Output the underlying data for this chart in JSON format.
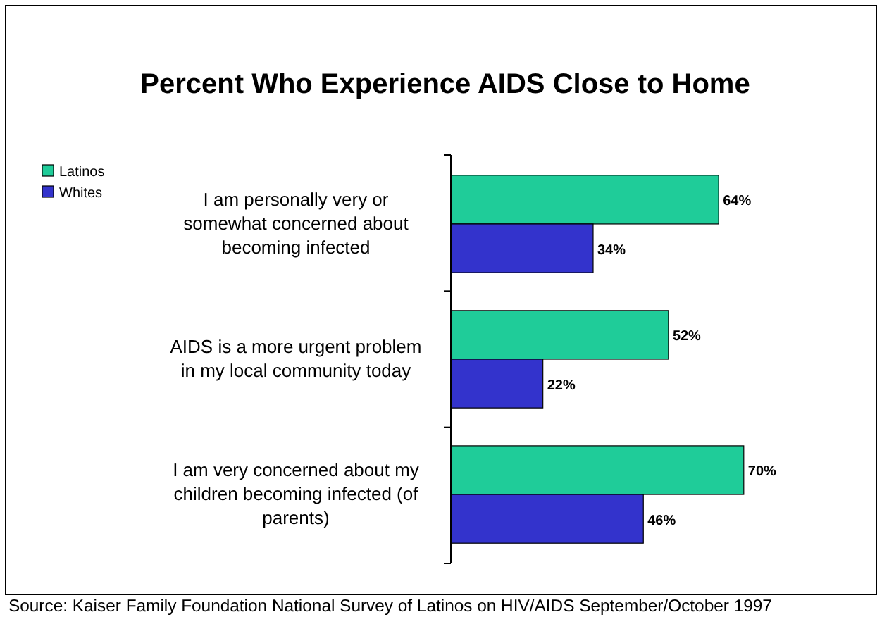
{
  "chart_data": {
    "type": "bar",
    "orientation": "horizontal",
    "title": "Percent Who Experience AIDS Close to Home",
    "categories": [
      "I am personally very or somewhat concerned about becoming infected",
      "AIDS is a more urgent problem in my local community today",
      "I am very concerned about my children becoming infected (of parents)"
    ],
    "series": [
      {
        "name": "Latinos",
        "color": "#1fcc99",
        "values": [
          64,
          52,
          70
        ],
        "value_labels": [
          "64%",
          "52%",
          "70%"
        ]
      },
      {
        "name": "Whites",
        "color": "#3333cc",
        "values": [
          34,
          22,
          46
        ],
        "value_labels": [
          "34%",
          "22%",
          "46%"
        ]
      }
    ],
    "legend": "top left",
    "annotations": [
      "Source: Kaiser Family Foundation National Survey of Latinos on HIV/AIDS September/October 1997"
    ]
  }
}
